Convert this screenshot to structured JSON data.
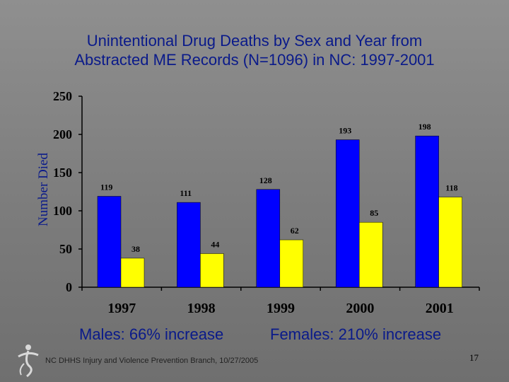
{
  "slide": {
    "title_line1": "Unintentional Drug Deaths by Sex and Year from",
    "title_line2": "Abstracted ME Records (N=1096) in NC: 1997-2001",
    "males_summary": "Males: 66% increase",
    "females_summary": "Females: 210% increase",
    "footer": "NC DHHS Injury and Violence Prevention Branch, 10/27/2005",
    "page_number": "17",
    "logo_icon": "figure-logo-icon"
  },
  "chart_data": {
    "type": "bar",
    "title": "Unintentional Drug Deaths by Sex and Year from Abstracted ME Records (N=1096) in NC: 1997-2001",
    "categories": [
      "1997",
      "1998",
      "1999",
      "2000",
      "2001"
    ],
    "series": [
      {
        "values": [
          119,
          111,
          128,
          193,
          198
        ],
        "color": "#0000ff"
      },
      {
        "values": [
          38,
          44,
          62,
          85,
          118
        ],
        "color": "#ffff00"
      }
    ],
    "ylabel": "Number Died",
    "ylim": [
      0,
      250
    ],
    "yticks": [
      0,
      50,
      100,
      150,
      200,
      250
    ],
    "grid": false
  }
}
